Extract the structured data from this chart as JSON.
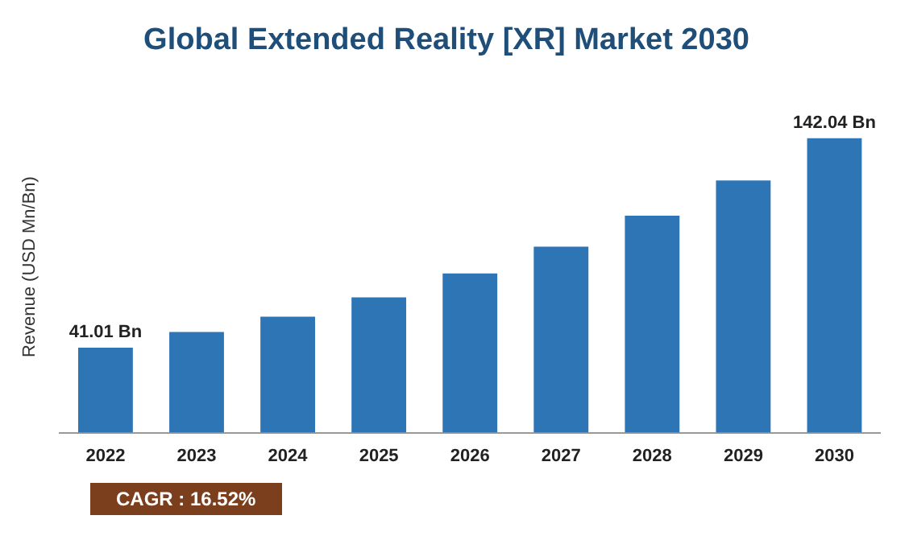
{
  "chart_data": {
    "type": "bar",
    "title": "Global Extended Reality [XR] Market 2030",
    "ylabel": "Revenue (USD Mn/Bn)",
    "categories": [
      "2022",
      "2023",
      "2024",
      "2025",
      "2026",
      "2027",
      "2028",
      "2029",
      "2030"
    ],
    "values": [
      41.01,
      48.6,
      56,
      65.3,
      76.8,
      89.7,
      104.7,
      121.7,
      142.04
    ],
    "value_labels": [
      "41.01 Bn",
      null,
      null,
      null,
      null,
      null,
      null,
      null,
      "142.04 Bn"
    ],
    "color": "#2e75b6",
    "grid": false,
    "legend": false,
    "annotations": [
      "CAGR : 16.52%"
    ]
  }
}
